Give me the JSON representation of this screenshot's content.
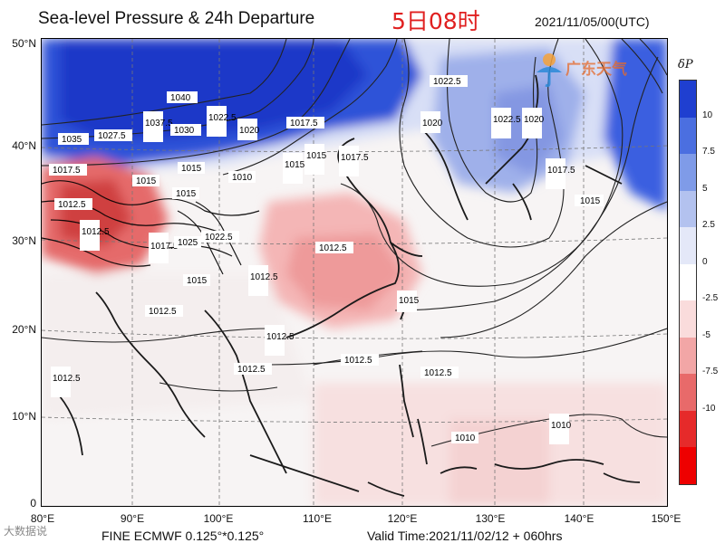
{
  "header": {
    "title": "Sea-level Pressure & 24h Departure",
    "title_cn": "5日08时",
    "datetime": "2021/11/05/00(UTC)"
  },
  "axes": {
    "y_ticks": [
      "50°N",
      "40°N",
      "30°N",
      "20°N",
      "10°N",
      "0"
    ],
    "x_ticks": [
      "80°E",
      "90°E",
      "100°E",
      "110°E",
      "120°E",
      "130°E",
      "140°E",
      "150°E"
    ]
  },
  "colorbar": {
    "title": "δP",
    "labels": [
      "10",
      "7.5",
      "5",
      "2.5",
      "0",
      "-2.5",
      "-5",
      "-7.5",
      "-10"
    ],
    "colors": [
      "#1f3fd0",
      "#4b6fe0",
      "#7f9be8",
      "#b3c2ef",
      "#e4e8f8",
      "#ffffff",
      "#fadcdc",
      "#f2a6a6",
      "#e86a6a",
      "#e62a2a",
      "#ee0000"
    ]
  },
  "logo": {
    "text": "广东天气",
    "icon": "sun-umbrella-logo-icon"
  },
  "contour_labels": [
    "1040",
    "1035",
    "1027.5",
    "1037.5",
    "1030",
    "1022.5",
    "1020",
    "1017.5",
    "1015",
    "1010",
    "1017.5",
    "1015",
    "1012.5",
    "1015",
    "1022.5",
    "1017.5",
    "1025",
    "1012.5",
    "1015",
    "1012.5",
    "1015",
    "1012.5",
    "1012.5",
    "1012.5",
    "1015",
    "1012.5",
    "1012.5",
    "1012.5",
    "1012.5",
    "1010",
    "1010",
    "1015",
    "1017.5",
    "1020",
    "1022.5",
    "1022.5",
    "1020",
    "1017.5",
    "1015",
    "1015"
  ],
  "footer": {
    "left": "FINE ECMWF 0.125°*0.125°",
    "right": "Valid Time:2021/11/02/12 + 060hrs",
    "watermark": "大数据说"
  }
}
